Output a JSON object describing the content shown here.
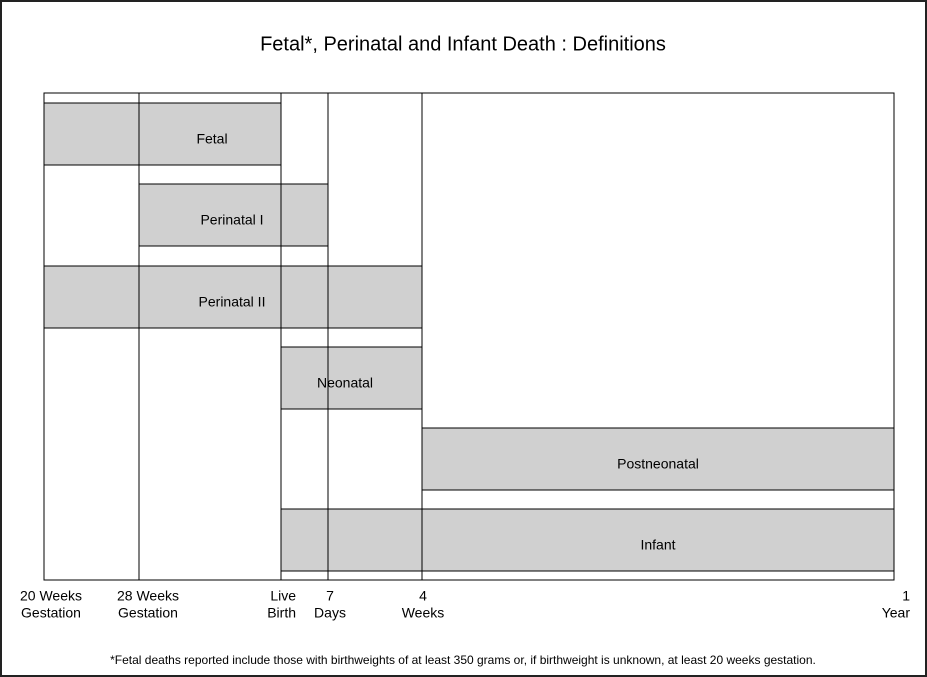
{
  "header": {
    "title": "Fetal*, Perinatal and Infant Death : Definitions"
  },
  "timeline": [
    {
      "top": "20 Weeks",
      "bottom": "Gestation"
    },
    {
      "top": "28 Weeks",
      "bottom": "Gestation"
    },
    {
      "top": "Live",
      "bottom": "Birth"
    },
    {
      "top": "7",
      "bottom": "Days"
    },
    {
      "top": "4",
      "bottom": "Weeks"
    },
    {
      "top": "1",
      "bottom": "Year"
    }
  ],
  "periods": [
    {
      "label": "Fetal"
    },
    {
      "label": "Perinatal I"
    },
    {
      "label": "Perinatal II"
    },
    {
      "label": "Neonatal"
    },
    {
      "label": "Postneonatal"
    },
    {
      "label": "Infant"
    }
  ],
  "footnote": "*Fetal deaths reported include those with birthweights of at least 350 grams or, if birthweight is unknown, at least 20 weeks gestation."
}
